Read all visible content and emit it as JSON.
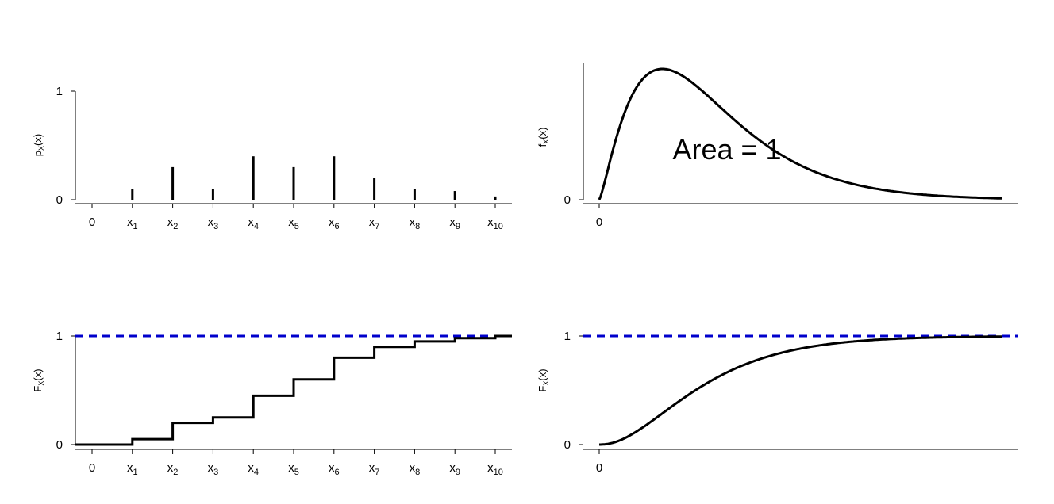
{
  "chart_data": [
    {
      "id": "pmf",
      "type": "bar",
      "ylabel": {
        "main": "p",
        "sub": "X",
        "rest": "(x)"
      },
      "yticks": [
        0,
        1
      ],
      "ylim": [
        0,
        1
      ],
      "categories": [
        {
          "main": "0",
          "sub": ""
        },
        {
          "main": "x",
          "sub": "1"
        },
        {
          "main": "x",
          "sub": "2"
        },
        {
          "main": "x",
          "sub": "3"
        },
        {
          "main": "x",
          "sub": "4"
        },
        {
          "main": "x",
          "sub": "5"
        },
        {
          "main": "x",
          "sub": "6"
        },
        {
          "main": "x",
          "sub": "7"
        },
        {
          "main": "x",
          "sub": "8"
        },
        {
          "main": "x",
          "sub": "9"
        },
        {
          "main": "x",
          "sub": "10"
        }
      ],
      "values": [
        0,
        0.1,
        0.3,
        0.1,
        0.4,
        0.3,
        0.4,
        0.2,
        0.1,
        0.08,
        0.03
      ]
    },
    {
      "id": "pdf",
      "type": "line",
      "ylabel": {
        "main": "f",
        "sub": "X",
        "rest": "(x)"
      },
      "yticks": [
        0
      ],
      "xticks": [
        0
      ],
      "annotation": "Area = 1",
      "curve": "density"
    },
    {
      "id": "cdf-discrete",
      "type": "line",
      "step": true,
      "ylabel": {
        "main": "F",
        "sub": "X",
        "rest": "(x)"
      },
      "yticks": [
        0,
        1
      ],
      "ylim": [
        0,
        1
      ],
      "reference_line": {
        "y": 1,
        "color": "#0000cc",
        "style": "dashed"
      },
      "categories": [
        {
          "main": "0",
          "sub": ""
        },
        {
          "main": "x",
          "sub": "1"
        },
        {
          "main": "x",
          "sub": "2"
        },
        {
          "main": "x",
          "sub": "3"
        },
        {
          "main": "x",
          "sub": "4"
        },
        {
          "main": "x",
          "sub": "5"
        },
        {
          "main": "x",
          "sub": "6"
        },
        {
          "main": "x",
          "sub": "7"
        },
        {
          "main": "x",
          "sub": "8"
        },
        {
          "main": "x",
          "sub": "9"
        },
        {
          "main": "x",
          "sub": "10"
        }
      ],
      "values": [
        0,
        0.05,
        0.2,
        0.25,
        0.45,
        0.6,
        0.8,
        0.9,
        0.95,
        0.98,
        1.0
      ]
    },
    {
      "id": "cdf-continuous",
      "type": "line",
      "ylabel": {
        "main": "F",
        "sub": "X",
        "rest": "(x)"
      },
      "yticks": [
        0,
        1
      ],
      "xticks": [
        0
      ],
      "ylim": [
        0,
        1
      ],
      "reference_line": {
        "y": 1,
        "color": "#0000cc",
        "style": "dashed"
      },
      "curve": "cumulative"
    }
  ]
}
